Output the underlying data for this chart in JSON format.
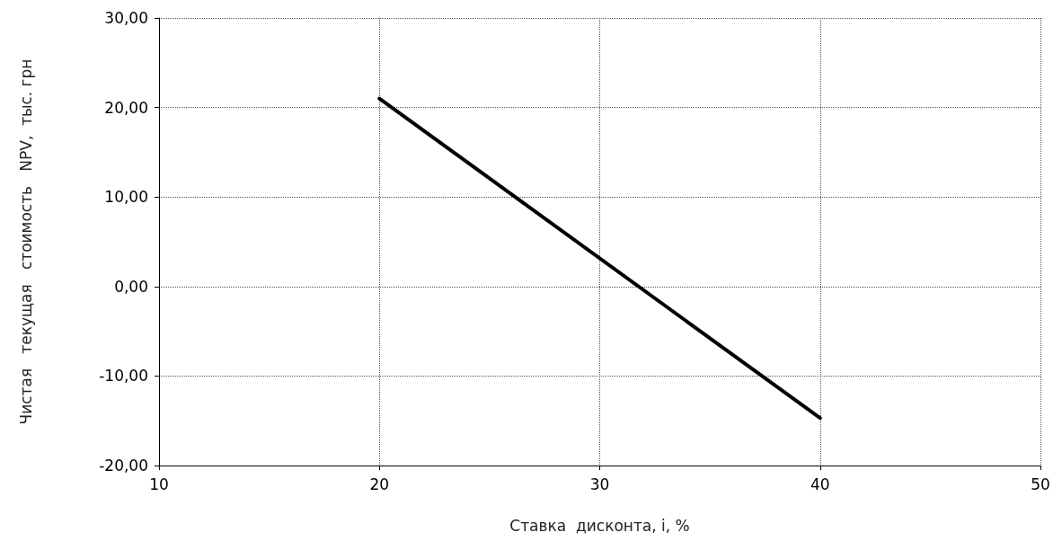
{
  "chart_data": {
    "type": "line",
    "xlabel": "Ставка  дисконта, i, %",
    "ylabel": "Чистая   текущая   стоимость   NPV,  тыс. грн",
    "x": [
      20,
      40
    ],
    "series": [
      {
        "color": "#000000",
        "values": [
          21.0,
          -14.7
        ]
      }
    ],
    "xlim": [
      10,
      50
    ],
    "xticks": [
      10,
      20,
      30,
      40,
      50
    ],
    "ylim": [
      -20,
      30
    ],
    "yticks": [
      {
        "value": -20,
        "label": "-20,00"
      },
      {
        "value": -10,
        "label": "-10,00"
      },
      {
        "value": 0,
        "label": "0,00"
      },
      {
        "value": 10,
        "label": "10,00"
      },
      {
        "value": 20,
        "label": "20,00"
      },
      {
        "value": 30,
        "label": "30,00"
      }
    ],
    "grid": true,
    "marker": "none",
    "line_style": "solid"
  }
}
